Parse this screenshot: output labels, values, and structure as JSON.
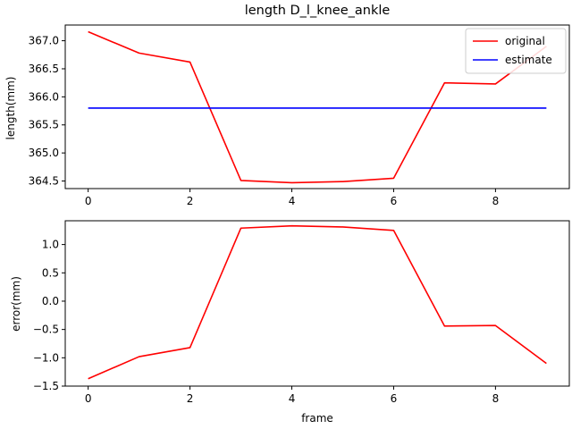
{
  "chart_data": [
    {
      "type": "line",
      "title": "length D_l_knee_ankle",
      "xlabel": "",
      "ylabel": "length(mm)",
      "xlim": [
        -0.45,
        9.45
      ],
      "ylim": [
        364.365,
        367.28
      ],
      "xticks": [
        0,
        2,
        4,
        6,
        8
      ],
      "xtick_labels": [
        "0",
        "2",
        "4",
        "6",
        "8"
      ],
      "yticks": [
        364.5,
        365.0,
        365.5,
        366.0,
        366.5,
        367.0
      ],
      "ytick_labels": [
        "364.5",
        "365.0",
        "365.5",
        "366.0",
        "366.5",
        "367.0"
      ],
      "grid": false,
      "legend_placement": "top-right",
      "series": [
        {
          "name": "original",
          "color": "#ff0000",
          "x": [
            0,
            1,
            2,
            3,
            4,
            5,
            6,
            7,
            8,
            9
          ],
          "values": [
            367.16,
            366.78,
            366.62,
            364.51,
            364.47,
            364.49,
            364.55,
            366.25,
            366.23,
            366.9
          ]
        },
        {
          "name": "estimate",
          "color": "#0000ff",
          "x": [
            0,
            1,
            2,
            3,
            4,
            5,
            6,
            7,
            8,
            9
          ],
          "values": [
            365.8,
            365.8,
            365.8,
            365.8,
            365.8,
            365.8,
            365.8,
            365.8,
            365.8,
            365.8
          ]
        }
      ]
    },
    {
      "type": "line",
      "title": "",
      "xlabel": "frame",
      "ylabel": "error(mm)",
      "xlim": [
        -0.45,
        9.45
      ],
      "ylim": [
        -1.5,
        1.42
      ],
      "xticks": [
        0,
        2,
        4,
        6,
        8
      ],
      "xtick_labels": [
        "0",
        "2",
        "4",
        "6",
        "8"
      ],
      "yticks": [
        -1.5,
        -1.0,
        -0.5,
        0.0,
        0.5,
        1.0
      ],
      "ytick_labels": [
        "−1.5",
        "−1.0",
        "−0.5",
        "0.0",
        "0.5",
        "1.0"
      ],
      "grid": false,
      "series": [
        {
          "color": "#ff0000",
          "x": [
            0,
            1,
            2,
            3,
            4,
            5,
            6,
            7,
            8,
            9
          ],
          "values": [
            -1.37,
            -0.98,
            -0.82,
            1.29,
            1.33,
            1.31,
            1.25,
            -0.44,
            -0.43,
            -1.1
          ]
        }
      ]
    }
  ]
}
